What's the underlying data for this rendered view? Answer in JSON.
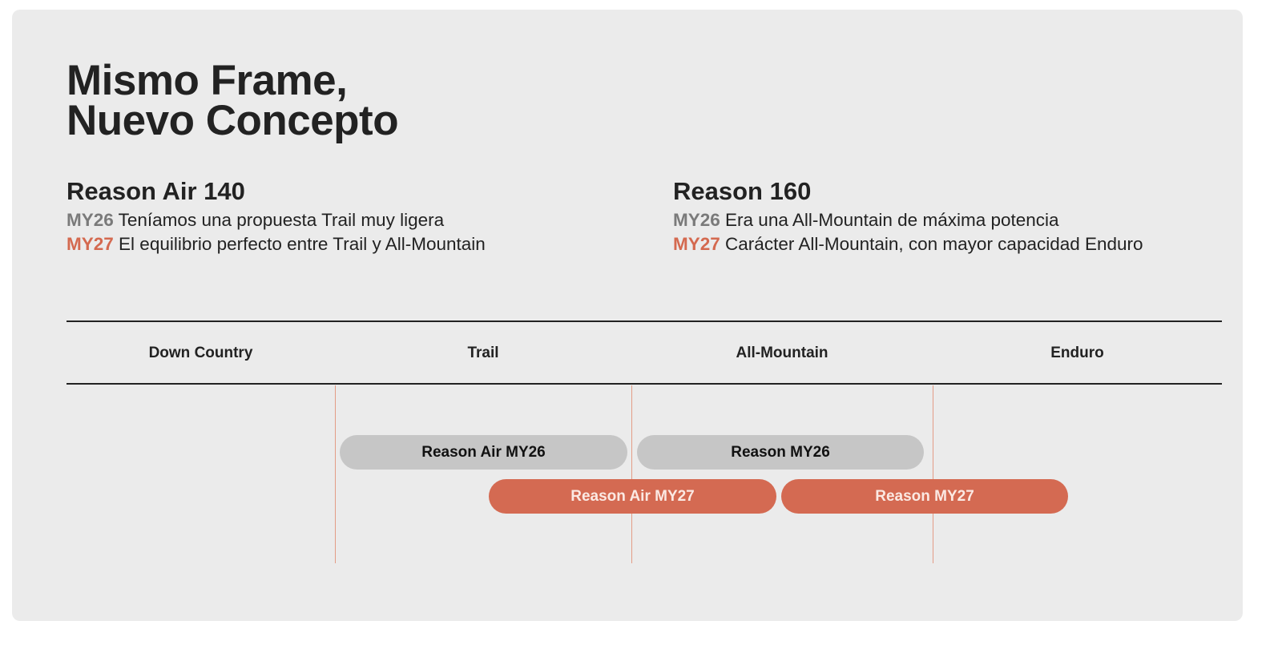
{
  "title_lines": [
    "Mismo Frame,",
    "Nuevo Concepto"
  ],
  "models": [
    {
      "name": "Reason Air 140",
      "my26_label": "MY26",
      "my26_text": "Teníamos una propuesta Trail muy ligera",
      "my27_label": "MY27",
      "my27_text": "El equilibrio perfecto entre Trail y All-Mountain"
    },
    {
      "name": "Reason 160",
      "my26_label": "MY26",
      "my26_text": "Era una All-Mountain de máxima potencia",
      "my27_label": "MY27",
      "my27_text": "Carácter All-Mountain, con mayor capacidad Enduro"
    }
  ],
  "categories": [
    "Down Country",
    "Trail",
    "All-Mountain",
    "Enduro"
  ],
  "bars": [
    {
      "label": "Reason Air MY26",
      "year": "MY26"
    },
    {
      "label": "Reason MY26",
      "year": "MY26"
    },
    {
      "label": "Reason Air MY27",
      "year": "MY27"
    },
    {
      "label": "Reason MY27",
      "year": "MY27"
    }
  ],
  "colors": {
    "my26": "#c6c6c6",
    "my27": "#d46a52",
    "background": "#ebebeb"
  }
}
